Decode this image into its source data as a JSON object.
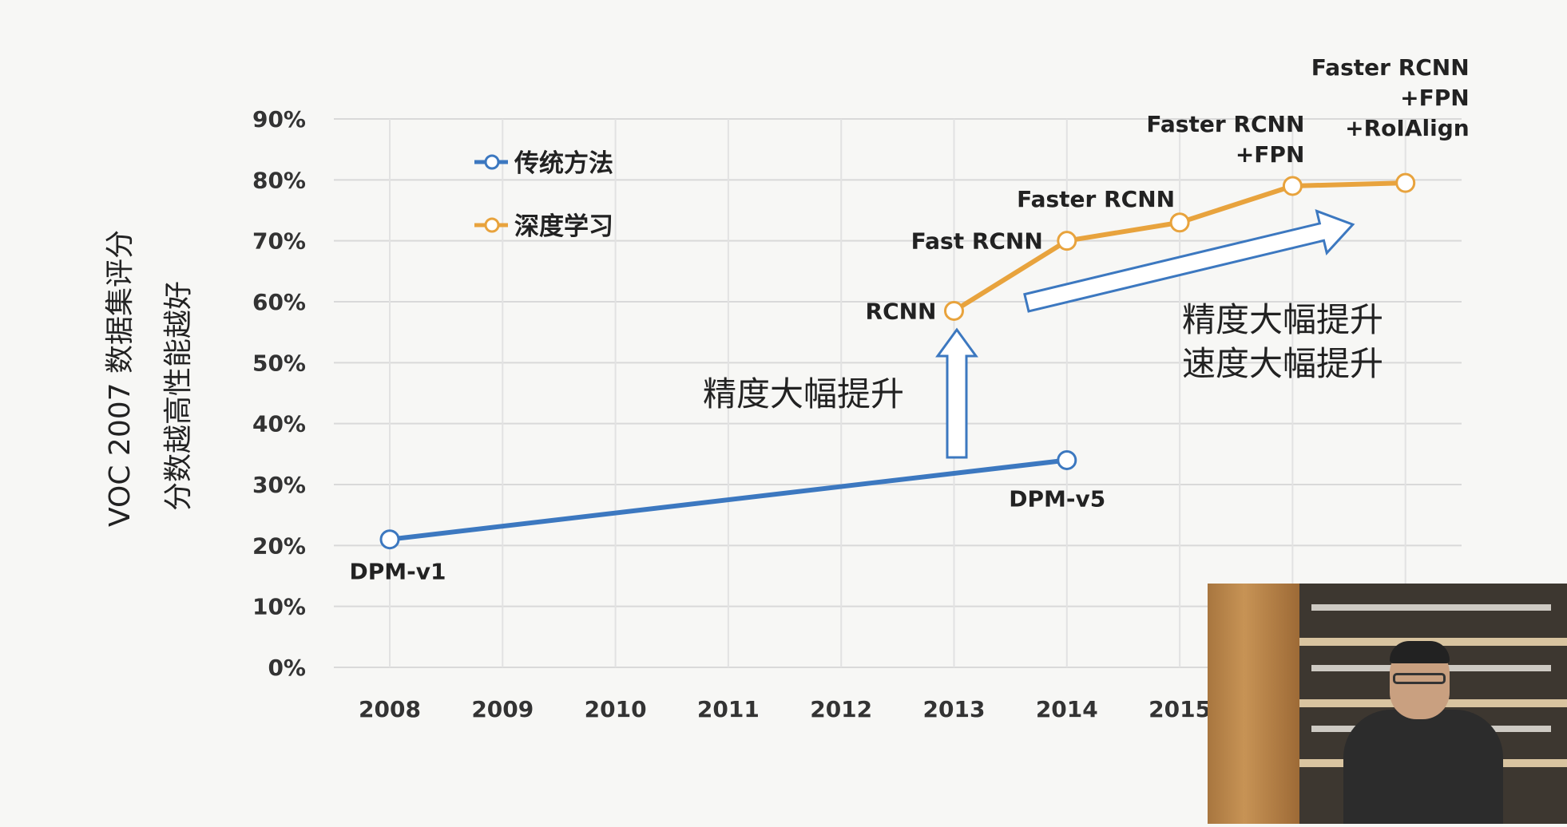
{
  "chart_data": {
    "type": "line",
    "x": [
      2008,
      2009,
      2010,
      2011,
      2012,
      2013,
      2014,
      2015
    ],
    "x_tick_labels": [
      "2008",
      "2009",
      "2010",
      "2011",
      "2012",
      "2013",
      "2014",
      "2015"
    ],
    "y_tick_labels": [
      "0%",
      "10%",
      "20%",
      "30%",
      "40%",
      "50%",
      "60%",
      "70%",
      "80%",
      "90%"
    ],
    "ylim": [
      0,
      90
    ],
    "ylabel_line1": "VOC 2007 数据集评分",
    "ylabel_line2": "分数越高性能越好",
    "grid": true,
    "legend_position": "top-left",
    "legend": [
      "传统方法",
      "深度学习"
    ],
    "series": [
      {
        "name": "传统方法",
        "color": "#3c78c0",
        "points": [
          {
            "x": 2008,
            "y": 21,
            "label": "DPM-v1"
          },
          {
            "x": 2014,
            "y": 34,
            "label": "DPM-v5"
          }
        ]
      },
      {
        "name": "深度学习",
        "color": "#e8a33d",
        "points": [
          {
            "x": 2013,
            "y": 58.5,
            "label": "RCNN"
          },
          {
            "x": 2014,
            "y": 70,
            "label": "Fast RCNN"
          },
          {
            "x": 2015,
            "y": 73,
            "label": "Faster RCNN"
          },
          {
            "x": 2016,
            "y": 79,
            "label": "Faster RCNN\n+FPN"
          },
          {
            "x": 2017,
            "y": 79.5,
            "label": "Faster RCNN\n+FPN\n+RoIAlign"
          }
        ]
      }
    ],
    "annotations": [
      {
        "text": "精度大幅提升"
      },
      {
        "text": "精度大幅提升"
      },
      {
        "text": "速度大幅提升"
      }
    ]
  }
}
